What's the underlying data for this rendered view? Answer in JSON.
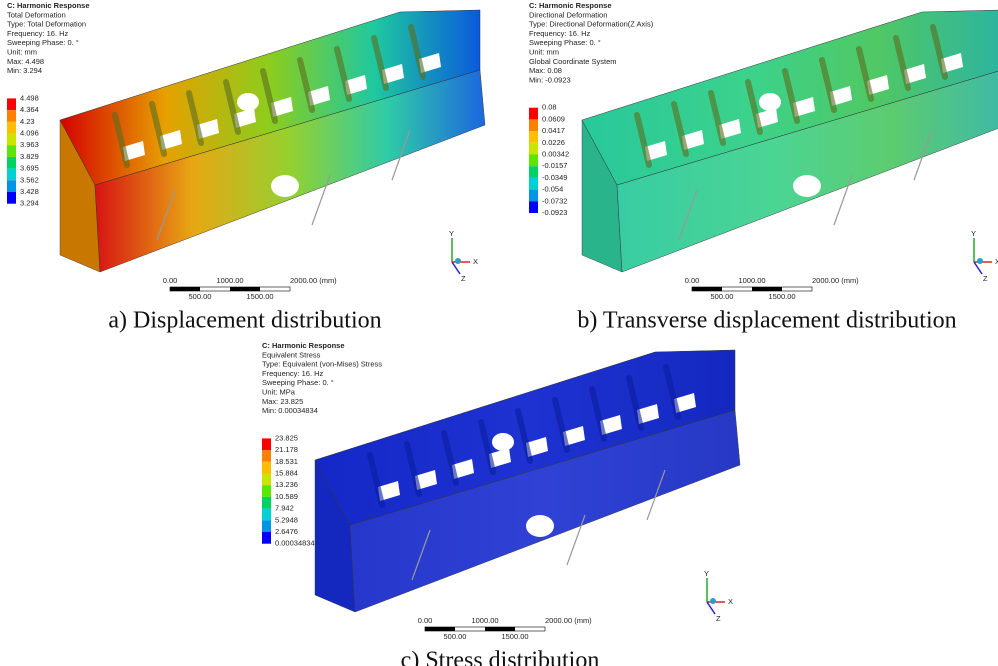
{
  "panels": [
    {
      "info": [
        "C: Harmonic Response",
        "Total Deformation",
        "Type: Total Deformation",
        "Frequency: 16. Hz",
        "Sweeping Phase: 0. °",
        "Unit: mm",
        "Max: 4.498",
        "Min: 3.294"
      ],
      "legend": [
        "4.498",
        "4.364",
        "4.23",
        "4.096",
        "3.963",
        "3.829",
        "3.695",
        "3.562",
        "3.428",
        "3.294"
      ],
      "scale_top": [
        "0.00",
        "1000.00",
        "2000.00 (mm)"
      ],
      "scale_bottom": [
        "500.00",
        "1500.00"
      ],
      "axes": [
        "Y",
        "X",
        "Z"
      ],
      "caption": "a) Displacement distribution"
    },
    {
      "info": [
        "C: Harmonic Response",
        "Directional Deformation",
        "Type: Directional Deformation(Z Axis)",
        "Frequency: 16. Hz",
        "Sweeping Phase: 0. °",
        "Unit: mm",
        "Global Coordinate System",
        "Max: 0.08",
        "Min: -0.0923"
      ],
      "legend": [
        "0.08",
        "0.0609",
        "0.0417",
        "0.0226",
        "0.00342",
        "-0.0157",
        "-0.0349",
        "-0.054",
        "-0.0732",
        "-0.0923"
      ],
      "scale_top": [
        "0.00",
        "1000.00",
        "2000.00 (mm)"
      ],
      "scale_bottom": [
        "500.00",
        "1500.00"
      ],
      "axes": [
        "Y",
        "X",
        "Z"
      ],
      "caption": "b) Transverse displacement distribution"
    },
    {
      "info": [
        "C: Harmonic Response",
        "Equivalent Stress",
        "Type: Equivalent (von-Mises) Stress",
        "Frequency: 16. Hz",
        "Sweeping Phase: 0. °",
        "Unit: MPa",
        "Max: 23.825",
        "Min: 0.00034834"
      ],
      "legend": [
        "23.825",
        "21.178",
        "18.531",
        "15.884",
        "13.236",
        "10.589",
        "7.942",
        "5.2948",
        "2.6476",
        "0.00034834"
      ],
      "scale_top": [
        "0.00",
        "1000.00",
        "2000.00 (mm)"
      ],
      "scale_bottom": [
        "500.00",
        "1500.00"
      ],
      "axes": [
        "Y",
        "X",
        "Z"
      ],
      "caption": "c) Stress distribution"
    }
  ]
}
